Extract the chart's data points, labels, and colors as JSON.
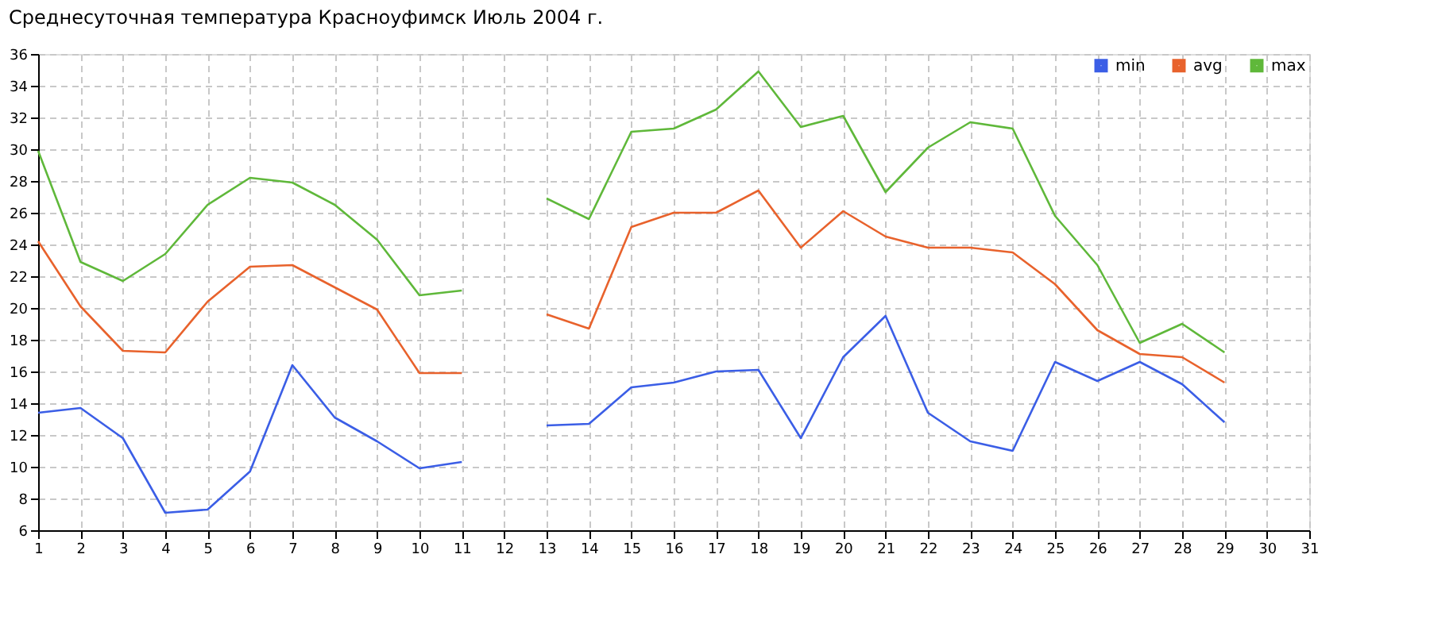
{
  "chart_data": {
    "type": "line",
    "title": "Среднесуточная температура Красноуфимск  Июль 2004 г.",
    "x": [
      1,
      2,
      3,
      4,
      5,
      6,
      7,
      8,
      9,
      10,
      11,
      12,
      13,
      14,
      15,
      16,
      17,
      18,
      19,
      20,
      21,
      22,
      23,
      24,
      25,
      26,
      27,
      28,
      29
    ],
    "series": [
      {
        "name": "min",
        "color": "#3b5ee6",
        "values": [
          13.4,
          13.7,
          11.8,
          7.1,
          7.3,
          9.7,
          16.4,
          13.1,
          11.6,
          9.9,
          10.3,
          null,
          12.6,
          12.7,
          15.0,
          15.3,
          16.0,
          16.1,
          11.8,
          16.9,
          19.5,
          13.4,
          11.6,
          11.0,
          16.6,
          15.4,
          16.6,
          15.2,
          12.8
        ]
      },
      {
        "name": "avg",
        "color": "#e8622c",
        "values": [
          24.2,
          20.1,
          17.3,
          17.2,
          20.4,
          22.6,
          22.7,
          21.3,
          19.9,
          15.9,
          15.9,
          null,
          19.6,
          18.7,
          25.1,
          26.0,
          26.0,
          27.4,
          23.8,
          26.1,
          24.5,
          23.8,
          23.8,
          23.5,
          21.5,
          18.6,
          17.1,
          16.9,
          15.3
        ]
      },
      {
        "name": "max",
        "color": "#5fb83a",
        "values": [
          29.9,
          22.9,
          21.7,
          23.4,
          26.5,
          28.2,
          27.9,
          26.5,
          24.3,
          20.8,
          21.1,
          null,
          26.9,
          25.6,
          31.1,
          31.3,
          32.5,
          34.9,
          31.4,
          32.1,
          27.3,
          30.1,
          31.7,
          31.3,
          25.8,
          22.7,
          17.8,
          19.0,
          17.2
        ]
      }
    ],
    "xlim": [
      1,
      31
    ],
    "xticks": [
      1,
      2,
      3,
      4,
      5,
      6,
      7,
      8,
      9,
      10,
      11,
      12,
      13,
      14,
      15,
      16,
      17,
      18,
      19,
      20,
      21,
      22,
      23,
      24,
      25,
      26,
      27,
      28,
      29,
      30,
      31
    ],
    "ylim": [
      6,
      36
    ],
    "yticks": [
      6,
      8,
      10,
      12,
      14,
      16,
      18,
      20,
      22,
      24,
      26,
      28,
      30,
      32,
      34,
      36
    ],
    "grid": true,
    "legend": "top right",
    "marker": "none",
    "line_style": "solid"
  }
}
